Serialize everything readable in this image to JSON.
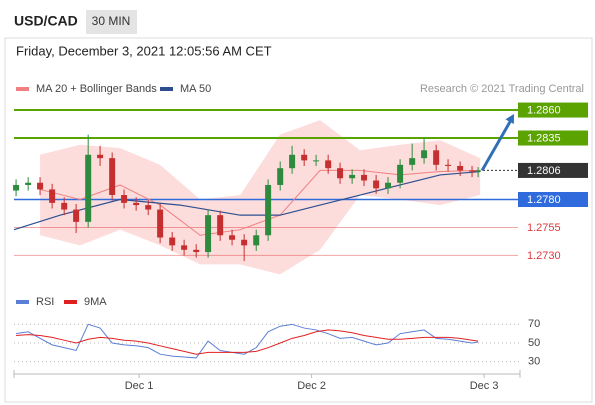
{
  "chart_data": {
    "type": "candlestick",
    "symbol": "USD/CAD",
    "timeframe": "30 MIN",
    "timestamp": "Friday, December 3, 2021 12:05:56 AM CET",
    "source": "Research © 2021 Trading Central",
    "up_color": "#2e8b3e",
    "down_color": "#c62f2f",
    "xlim": [
      0.275,
      3.208
    ],
    "ylim": [
      1.2708,
      1.2869
    ],
    "xticks": [
      {
        "value": 1,
        "label": "Dec 1"
      },
      {
        "value": 2,
        "label": "Dec 2"
      },
      {
        "value": 3,
        "label": "Dec 3"
      }
    ],
    "x": [
      0.287,
      0.357,
      0.426,
      0.496,
      0.566,
      0.635,
      0.705,
      0.774,
      0.844,
      0.913,
      0.983,
      1.053,
      1.122,
      1.192,
      1.261,
      1.331,
      1.4,
      1.47,
      1.539,
      1.609,
      1.679,
      1.748,
      1.818,
      1.887,
      1.957,
      2.026,
      2.096,
      2.165,
      2.235,
      2.304,
      2.374,
      2.443,
      2.513,
      2.583,
      2.652,
      2.722,
      2.791,
      2.861,
      2.93,
      2.965
    ],
    "open": [
      1.2788,
      1.2793,
      1.2795,
      1.2789,
      1.2777,
      1.2771,
      1.276,
      1.282,
      1.2817,
      1.2784,
      1.2777,
      1.2775,
      1.2771,
      1.2746,
      1.2739,
      1.2735,
      1.2733,
      1.2766,
      1.2748,
      1.2744,
      1.2739,
      1.2748,
      1.2793,
      1.2808,
      1.282,
      1.2815,
      1.2815,
      1.2808,
      1.2799,
      1.2802,
      1.2797,
      1.279,
      1.2795,
      1.2811,
      1.2817,
      1.2824,
      1.2811,
      1.281,
      1.2806,
      1.2805
    ],
    "high": [
      1.2798,
      1.28,
      1.28,
      1.2794,
      1.2782,
      1.2776,
      1.2838,
      1.2828,
      1.2822,
      1.2789,
      1.2782,
      1.278,
      1.2776,
      1.2751,
      1.2744,
      1.274,
      1.2771,
      1.277,
      1.2753,
      1.2749,
      1.2753,
      1.2798,
      1.2814,
      1.2828,
      1.2825,
      1.282,
      1.282,
      1.2813,
      1.2807,
      1.2807,
      1.2802,
      1.28,
      1.2816,
      1.283,
      1.2835,
      1.2829,
      1.2816,
      1.2814,
      1.281,
      1.2809
    ],
    "low": [
      1.2783,
      1.2788,
      1.2784,
      1.2772,
      1.2766,
      1.275,
      1.2755,
      1.281,
      1.2779,
      1.2772,
      1.277,
      1.2766,
      1.2741,
      1.2734,
      1.273,
      1.2728,
      1.2728,
      1.2743,
      1.2739,
      1.2725,
      1.2734,
      1.2743,
      1.2788,
      1.2803,
      1.281,
      1.281,
      1.2803,
      1.2794,
      1.2794,
      1.2792,
      1.2785,
      1.2785,
      1.279,
      1.2806,
      1.2812,
      1.2806,
      1.2805,
      1.2801,
      1.28,
      1.28
    ],
    "close": [
      1.2793,
      1.2795,
      1.2789,
      1.2777,
      1.2771,
      1.276,
      1.282,
      1.2817,
      1.2784,
      1.2777,
      1.2775,
      1.2771,
      1.2746,
      1.2739,
      1.2735,
      1.2733,
      1.2766,
      1.2748,
      1.2744,
      1.2739,
      1.2748,
      1.2793,
      1.2808,
      1.282,
      1.2815,
      1.2815,
      1.2808,
      1.2799,
      1.2802,
      1.2797,
      1.279,
      1.2795,
      1.2811,
      1.2817,
      1.2824,
      1.2811,
      1.281,
      1.2806,
      1.2805,
      1.2806
    ],
    "overlays": [
      {
        "name": "MA 20 + Bollinger Bands",
        "color": "#f08080",
        "band_color": "#fdd3d3",
        "x": [
          0.426,
          0.658,
          0.89,
          1.122,
          1.354,
          1.586,
          1.817,
          2.049,
          2.281,
          2.513,
          2.745,
          2.977
        ],
        "values": [
          1.2789,
          1.278,
          1.2793,
          1.2775,
          1.2748,
          1.2753,
          1.2766,
          1.2806,
          1.2806,
          1.2802,
          1.2805,
          1.2806
        ],
        "upper": [
          1.282,
          1.2829,
          1.2826,
          1.2811,
          1.278,
          1.2784,
          1.2838,
          1.2851,
          1.2824,
          1.2829,
          1.2833,
          1.2817
        ],
        "lower": [
          1.2748,
          1.2739,
          1.2753,
          1.2739,
          1.2722,
          1.2722,
          1.2713,
          1.2735,
          1.2784,
          1.278,
          1.2775,
          1.2784
        ]
      },
      {
        "name": "MA 50",
        "color": "#2d4f8f",
        "x": [
          0.275,
          0.542,
          0.89,
          1.238,
          1.586,
          1.817,
          2.049,
          2.281,
          2.513,
          2.745,
          2.977
        ],
        "values": [
          1.2753,
          1.2766,
          1.278,
          1.2775,
          1.2766,
          1.2766,
          1.2775,
          1.2784,
          1.2793,
          1.2802,
          1.2805
        ]
      }
    ],
    "levels": [
      {
        "value": 1.286,
        "label": "1.2860",
        "color": "#5aa300",
        "style": "box"
      },
      {
        "value": 1.2835,
        "label": "1.2835",
        "color": "#5aa300",
        "style": "box"
      },
      {
        "value": 1.2806,
        "label": "1.2806",
        "color": "#333333",
        "style": "current"
      },
      {
        "value": 1.278,
        "label": "1.2780",
        "color": "#2f6bdc",
        "style": "box"
      },
      {
        "value": 1.2755,
        "label": "1.2755",
        "color": "#e0383c",
        "style": "text"
      },
      {
        "value": 1.273,
        "label": "1.2730",
        "color": "#e0383c",
        "style": "text"
      }
    ],
    "rsi": {
      "ylim": [
        20,
        80
      ],
      "yticks": [
        70,
        50,
        30
      ],
      "series": [
        {
          "name": "RSI",
          "color": "#5b7fd6",
          "values": [
            60,
            62,
            55,
            48,
            45,
            42,
            70,
            66,
            50,
            48,
            47,
            45,
            38,
            36,
            35,
            34,
            52,
            42,
            40,
            38,
            45,
            62,
            68,
            70,
            66,
            64,
            60,
            55,
            56,
            52,
            48,
            50,
            60,
            62,
            64,
            55,
            54,
            52,
            50,
            51
          ]
        },
        {
          "name": "9MA",
          "color": "#e02020",
          "values": [
            58,
            59,
            58,
            56,
            53,
            50,
            54,
            56,
            55,
            53,
            52,
            50,
            47,
            44,
            41,
            38,
            40,
            40,
            40,
            40,
            41,
            45,
            50,
            55,
            58,
            62,
            64,
            63,
            61,
            58,
            56,
            54,
            54,
            55,
            56,
            56,
            56,
            55,
            53,
            52
          ]
        }
      ]
    }
  }
}
